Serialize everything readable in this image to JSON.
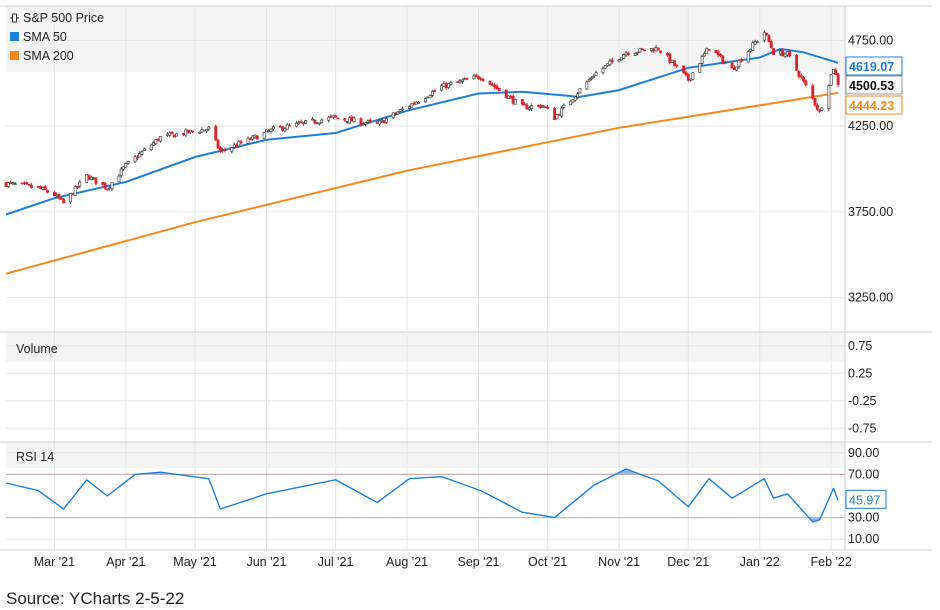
{
  "chart_data": {
    "type": "candlestick-with-indicators",
    "price_panel": {
      "legend": [
        {
          "name": "S&P 500 Price",
          "color": "#333333",
          "icon": "candlestick-icon"
        },
        {
          "name": "SMA 50",
          "color": "#1e7fd9"
        },
        {
          "name": "SMA 200",
          "color": "#f7891c"
        }
      ],
      "y_ticks": [
        "4750.00",
        "4250.00",
        "3750.00",
        "3250.00"
      ],
      "ylim": [
        3050,
        4950
      ],
      "last_values": [
        {
          "label": "4619.07",
          "series": "SMA 50",
          "value": 4619.07,
          "color": "#1e7fd9"
        },
        {
          "label": "4500.53",
          "series": "S&P 500 Price",
          "value": 4500.53,
          "color": "#111111"
        },
        {
          "label": "4444.23",
          "series": "SMA 200",
          "value": 4444.23,
          "color": "#f7891c"
        }
      ],
      "close_series": {
        "dates": [
          "2021-02-08",
          "2021-02-22",
          "2021-03-01",
          "2021-03-05",
          "2021-03-15",
          "2021-03-24",
          "2021-04-01",
          "2021-04-16",
          "2021-05-07",
          "2021-05-12",
          "2021-06-04",
          "2021-06-30",
          "2021-07-19",
          "2021-08-16",
          "2021-09-02",
          "2021-09-20",
          "2021-09-29",
          "2021-10-04",
          "2021-10-21",
          "2021-11-04",
          "2021-11-18",
          "2021-12-01",
          "2021-12-10",
          "2021-12-20",
          "2022-01-03",
          "2022-01-07",
          "2022-01-13",
          "2022-01-19",
          "2022-01-24",
          "2022-01-27",
          "2022-02-02",
          "2022-02-04"
        ],
        "values": [
          3915,
          3890,
          3850,
          3800,
          3960,
          3890,
          4020,
          4185,
          4235,
          4100,
          4230,
          4300,
          4260,
          4480,
          4540,
          4360,
          4370,
          4300,
          4550,
          4680,
          4704,
          4520,
          4710,
          4580,
          4800,
          4680,
          4670,
          4530,
          4410,
          4330,
          4590,
          4500.53
        ]
      },
      "sma50": {
        "dates": [
          "2021-02-08",
          "2021-03-01",
          "2021-04-01",
          "2021-05-01",
          "2021-06-01",
          "2021-07-01",
          "2021-08-01",
          "2021-09-01",
          "2021-09-20",
          "2021-10-15",
          "2021-11-01",
          "2021-12-01",
          "2022-01-01",
          "2022-01-10",
          "2022-01-20",
          "2022-02-04"
        ],
        "values": [
          3735,
          3830,
          3925,
          4070,
          4170,
          4210,
          4340,
          4440,
          4450,
          4420,
          4460,
          4590,
          4650,
          4700,
          4680,
          4619.07
        ]
      },
      "sma200": {
        "dates": [
          "2021-02-08",
          "2021-05-01",
          "2021-08-01",
          "2021-11-01",
          "2022-02-04"
        ],
        "values": [
          3390,
          3690,
          3990,
          4240,
          4444.23
        ]
      }
    },
    "volume_panel": {
      "title": "Volume",
      "y_ticks": [
        "0.75",
        "0.25",
        "-0.25",
        "-0.75"
      ]
    },
    "rsi_panel": {
      "title": "RSI 14",
      "y_ticks": [
        "90.00",
        "70.00",
        "30.00",
        "10.00"
      ],
      "last_label": "45.97",
      "last_value": 45.97,
      "overbought": 70,
      "oversold": 30,
      "dates": [
        "2021-02-08",
        "2021-02-22",
        "2021-03-05",
        "2021-03-15",
        "2021-03-24",
        "2021-04-05",
        "2021-04-16",
        "2021-05-07",
        "2021-05-12",
        "2021-06-01",
        "2021-07-01",
        "2021-07-19",
        "2021-08-02",
        "2021-08-16",
        "2021-09-02",
        "2021-09-20",
        "2021-10-04",
        "2021-10-21",
        "2021-11-04",
        "2021-11-18",
        "2021-12-01",
        "2021-12-10",
        "2021-12-20",
        "2022-01-03",
        "2022-01-07",
        "2022-01-13",
        "2022-01-24",
        "2022-01-27",
        "2022-02-02",
        "2022-02-04"
      ],
      "values": [
        62,
        55,
        38,
        65,
        50,
        70,
        72,
        66,
        38,
        52,
        65,
        44,
        66,
        68,
        55,
        35,
        30,
        60,
        75,
        64,
        40,
        66,
        48,
        66,
        48,
        52,
        26,
        28,
        57,
        45.97
      ]
    },
    "x_ticks": [
      {
        "label": "Mar '21",
        "date": "2021-03-01"
      },
      {
        "label": "Apr '21",
        "date": "2021-04-01"
      },
      {
        "label": "May '21",
        "date": "2021-05-01"
      },
      {
        "label": "Jun '21",
        "date": "2021-06-01"
      },
      {
        "label": "Jul '21",
        "date": "2021-07-01"
      },
      {
        "label": "Aug '21",
        "date": "2021-08-01"
      },
      {
        "label": "Sep '21",
        "date": "2021-09-01"
      },
      {
        "label": "Oct '21",
        "date": "2021-10-01"
      },
      {
        "label": "Nov '21",
        "date": "2021-11-01"
      },
      {
        "label": "Dec '21",
        "date": "2021-12-01"
      },
      {
        "label": "Jan '22",
        "date": "2022-01-01"
      },
      {
        "label": "Feb '22",
        "date": "2022-02-01"
      }
    ],
    "x_range": [
      "2021-02-08",
      "2022-02-07"
    ],
    "grid": true
  },
  "source_text": "Source: YCharts 2-5-22",
  "colors": {
    "up_candle": "#ffffff",
    "down_candle": "#d7262f",
    "grid": "#e6e6e6",
    "panel_bg": "#f4f4f4",
    "sma50": "#1e7fd9",
    "sma200": "#f7891c"
  }
}
